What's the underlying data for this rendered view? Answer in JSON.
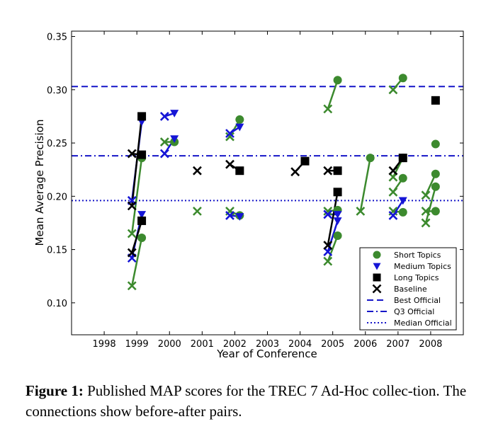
{
  "chart_data": {
    "type": "scatter",
    "xlabel": "Year of Conference",
    "ylabel": "Mean Average Precision",
    "xlim": [
      1997,
      2009
    ],
    "ylim": [
      0.07,
      0.355
    ],
    "xticks": [
      1998,
      1999,
      2000,
      2001,
      2002,
      2003,
      2004,
      2005,
      2006,
      2007,
      2008
    ],
    "xtick_labels": [
      "1998",
      "1999",
      "2000",
      "2001",
      "2002",
      "2003",
      "2004",
      "2005",
      "2006",
      "2007",
      "2008"
    ],
    "yticks": [
      0.1,
      0.15,
      0.2,
      0.25,
      0.3,
      0.35
    ],
    "ytick_labels": [
      "0.10",
      "0.15",
      "0.20",
      "0.25",
      "0.30",
      "0.35"
    ],
    "colors": {
      "short": "#3c8a2e",
      "medium": "#1515d6",
      "long": "#000000",
      "baseline": "#000000",
      "ref": "#1515c8"
    },
    "reference_lines": [
      {
        "name": "Best Official",
        "y": 0.303,
        "style": "dashed"
      },
      {
        "name": "Q3 Official",
        "y": 0.238,
        "style": "dashdot"
      },
      {
        "name": "Median Official",
        "y": 0.196,
        "style": "dotted"
      }
    ],
    "series": [
      {
        "name": "Short Topics",
        "marker": "circle",
        "color_key": "short",
        "pairs": [
          {
            "from": [
              1998.85,
              0.116
            ],
            "to": [
              1999.15,
              0.161
            ]
          },
          {
            "from": [
              1998.85,
              0.165
            ],
            "to": [
              1999.15,
              0.236
            ]
          },
          {
            "from": [
              1999.85,
              0.251
            ],
            "to": [
              2000.15,
              0.251
            ]
          },
          {
            "from": [
              2001.85,
              0.256
            ],
            "to": [
              2002.15,
              0.272
            ]
          },
          {
            "from": [
              2001.85,
              0.186
            ],
            "to": [
              2002.15,
              0.182
            ]
          },
          {
            "from": [
              2004.85,
              0.282
            ],
            "to": [
              2005.15,
              0.309
            ]
          },
          {
            "from": [
              2004.85,
              0.139
            ],
            "to": [
              2005.15,
              0.163
            ]
          },
          {
            "from": [
              2004.85,
              0.186
            ],
            "to": [
              2005.15,
              0.187
            ]
          },
          {
            "from": [
              2005.85,
              0.186
            ],
            "to": [
              2006.15,
              0.236
            ]
          },
          {
            "from": [
              2006.85,
              0.3
            ],
            "to": [
              2007.15,
              0.311
            ]
          },
          {
            "from": [
              2006.85,
              0.204
            ],
            "to": [
              2007.15,
              0.217
            ]
          },
          {
            "from": [
              2006.85,
              0.218
            ],
            "to": [
              2007.15,
              0.236
            ]
          },
          {
            "from": [
              2006.85,
              0.186
            ],
            "to": [
              2007.15,
              0.185
            ]
          },
          {
            "from": [
              2007.85,
              0.201
            ],
            "to": [
              2008.15,
              0.221
            ]
          },
          {
            "from": [
              2007.85,
              0.175
            ],
            "to": [
              2008.15,
              0.209
            ]
          },
          {
            "from": [
              2007.85,
              0.186
            ],
            "to": [
              2008.15,
              0.186
            ]
          }
        ],
        "singles": [
          [
            2008.15,
            0.249
          ],
          [
            2000.85,
            0.186
          ]
        ]
      },
      {
        "name": "Medium Topics",
        "marker": "triangle-down",
        "color_key": "medium",
        "pairs": [
          {
            "from": [
              1998.85,
              0.142
            ],
            "to": [
              1999.15,
              0.183
            ]
          },
          {
            "from": [
              1998.85,
              0.196
            ],
            "to": [
              1999.15,
              0.27
            ]
          },
          {
            "from": [
              1999.85,
              0.24
            ],
            "to": [
              2000.15,
              0.254
            ]
          },
          {
            "from": [
              1999.85,
              0.275
            ],
            "to": [
              2000.15,
              0.278
            ]
          },
          {
            "from": [
              2001.85,
              0.259
            ],
            "to": [
              2002.15,
              0.265
            ]
          },
          {
            "from": [
              2001.85,
              0.182
            ],
            "to": [
              2002.15,
              0.181
            ]
          },
          {
            "from": [
              2004.85,
              0.148
            ],
            "to": [
              2005.15,
              0.177
            ]
          },
          {
            "from": [
              2004.85,
              0.183
            ],
            "to": [
              2005.15,
              0.183
            ]
          },
          {
            "from": [
              2006.85,
              0.182
            ],
            "to": [
              2007.15,
              0.196
            ]
          }
        ],
        "singles": []
      },
      {
        "name": "Long Topics",
        "marker": "square",
        "color_key": "long",
        "pairs": [
          {
            "from": [
              1998.85,
              0.147
            ],
            "to": [
              1999.15,
              0.177
            ]
          },
          {
            "from": [
              1998.85,
              0.191
            ],
            "to": [
              1999.15,
              0.275
            ]
          },
          {
            "from": [
              1998.85,
              0.24
            ],
            "to": [
              1999.15,
              0.239
            ]
          },
          {
            "from": [
              2001.85,
              0.23
            ],
            "to": [
              2002.15,
              0.224
            ]
          },
          {
            "from": [
              2003.85,
              0.223
            ],
            "to": [
              2004.15,
              0.233
            ]
          },
          {
            "from": [
              2004.85,
              0.154
            ],
            "to": [
              2005.15,
              0.204
            ]
          },
          {
            "from": [
              2004.85,
              0.224
            ],
            "to": [
              2005.15,
              0.224
            ]
          },
          {
            "from": [
              2006.85,
              0.224
            ],
            "to": [
              2007.15,
              0.236
            ]
          }
        ],
        "singles": [
          [
            2008.15,
            0.29
          ]
        ]
      },
      {
        "name": "Baseline",
        "marker": "x",
        "color_key": "baseline",
        "pairs": [],
        "singles": [
          [
            2000.85,
            0.224
          ]
        ]
      }
    ],
    "legend": {
      "placement": "bottom-right",
      "entries": [
        "Short Topics",
        "Medium Topics",
        "Long Topics",
        "Baseline",
        "Best Official",
        "Q3 Official",
        "Median Official"
      ]
    }
  },
  "caption": {
    "label": "Figure 1:",
    "text": "Published MAP scores for the TREC 7 Ad-Hoc collec-tion. The connections show before-after pairs."
  }
}
